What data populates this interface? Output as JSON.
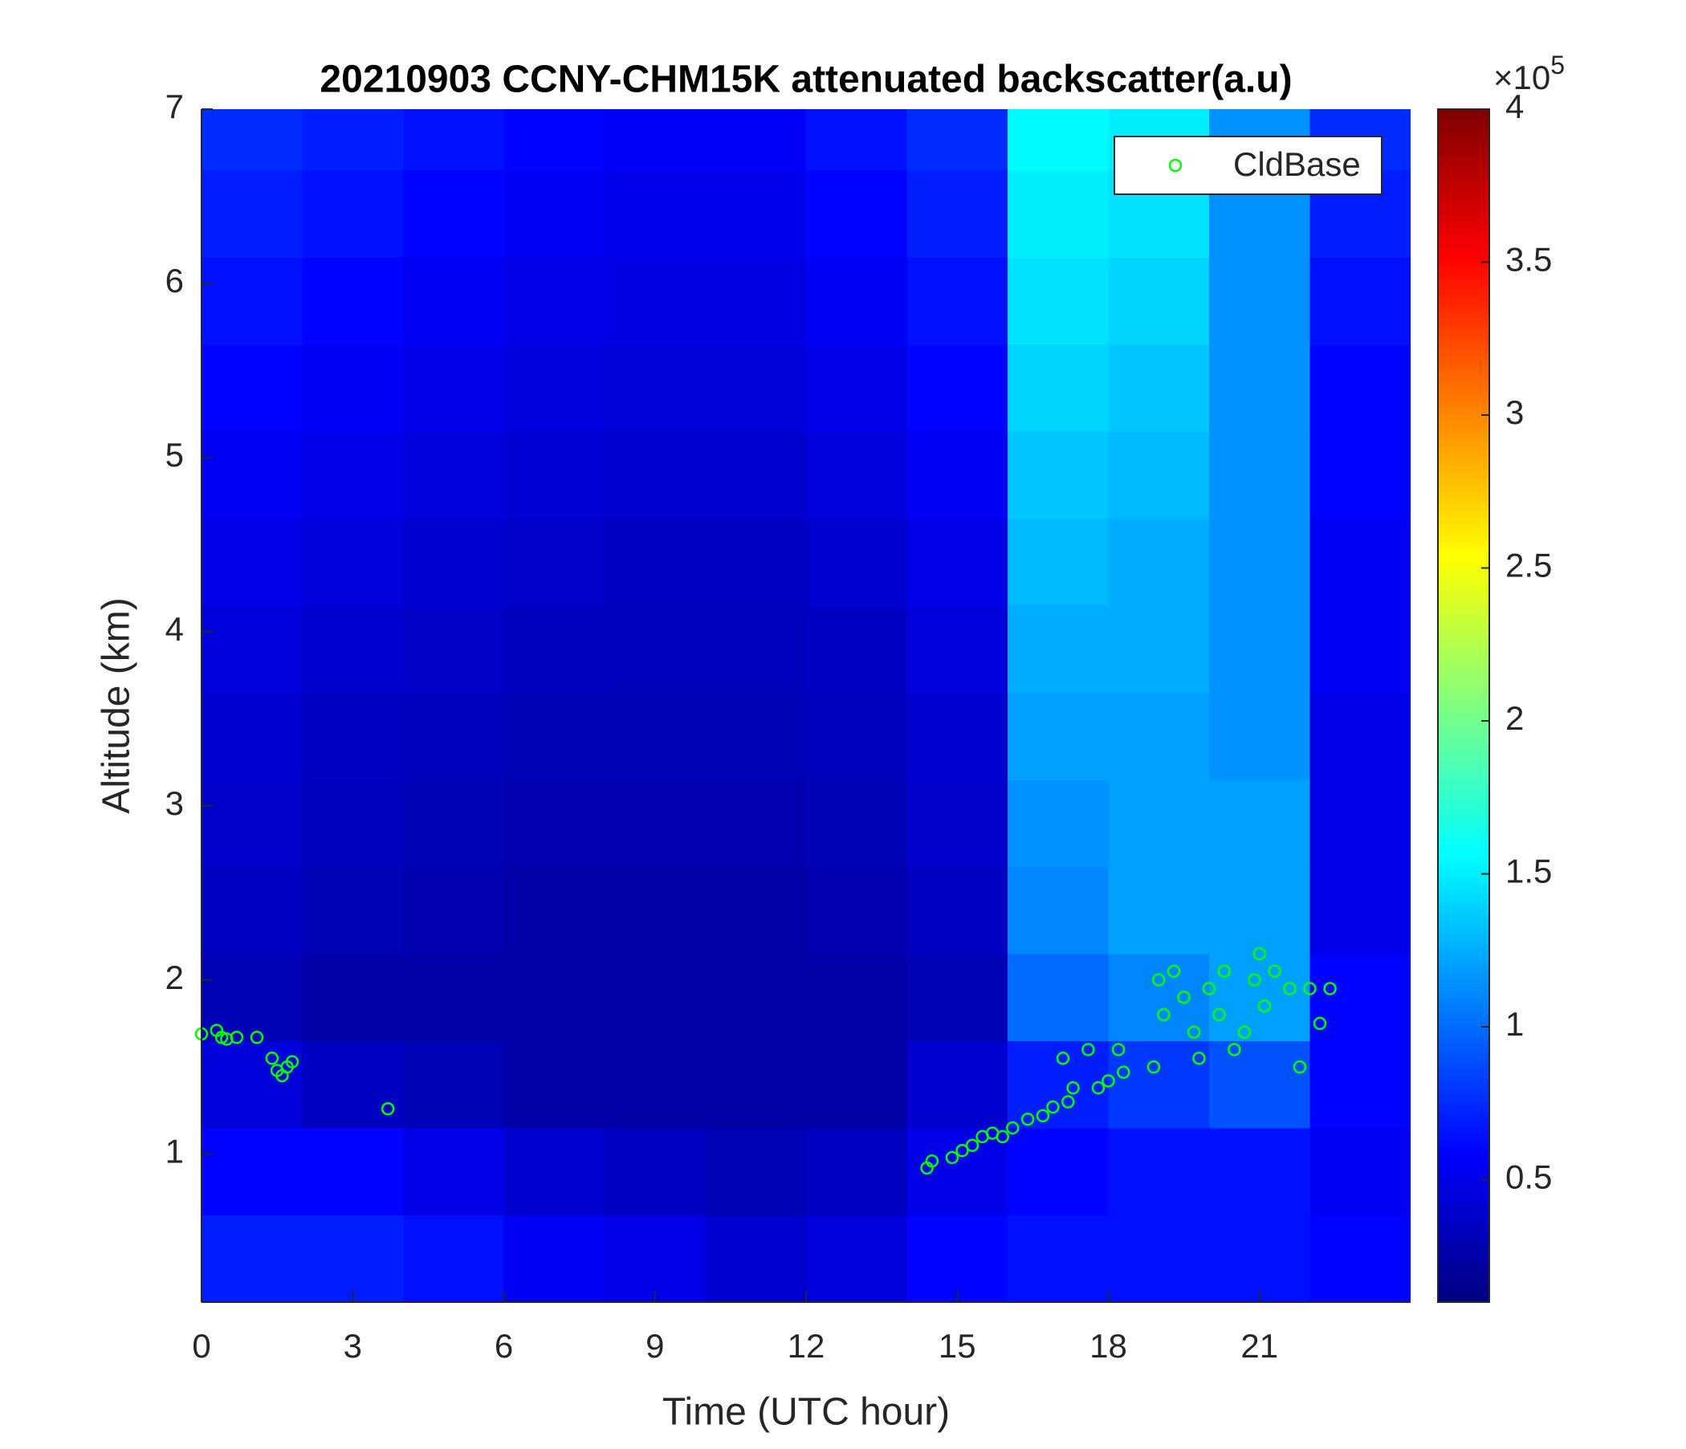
{
  "chart_data": {
    "type": "heatmap",
    "title": "20210903 CCNY-CHM15K attenuated backscatter(a.u)",
    "x_label": "Time (UTC hour)",
    "y_label": "Altitude (km)",
    "xlim": [
      0,
      24
    ],
    "ylim": [
      0.15,
      7
    ],
    "xticks": [
      0,
      3,
      6,
      9,
      12,
      15,
      18,
      21
    ],
    "yticks": [
      1,
      2,
      3,
      4,
      5,
      6,
      7
    ],
    "colormap": "jet",
    "clim": [
      10000,
      400000
    ],
    "colorbar_ticks": [
      {
        "value": 50000,
        "label": "0.5"
      },
      {
        "value": 100000,
        "label": "1"
      },
      {
        "value": 150000,
        "label": "1.5"
      },
      {
        "value": 200000,
        "label": "2"
      },
      {
        "value": 250000,
        "label": "2.5"
      },
      {
        "value": 300000,
        "label": "3"
      },
      {
        "value": 350000,
        "label": "3.5"
      },
      {
        "value": 400000,
        "label": "4"
      }
    ],
    "colorbar_multiplier": {
      "base": "×10",
      "exponent": "5"
    },
    "x": [
      1,
      3,
      5,
      7,
      9,
      11,
      13,
      15,
      17,
      19,
      21,
      23
    ],
    "y": [
      0.4,
      0.9,
      1.4,
      1.9,
      2.4,
      2.9,
      3.4,
      3.9,
      4.4,
      4.9,
      5.4,
      5.9,
      6.4,
      6.9
    ],
    "z": [
      [
        70000,
        70000,
        65000,
        55000,
        50000,
        40000,
        45000,
        60000,
        65000,
        65000,
        65000,
        60000
      ],
      [
        60000,
        60000,
        50000,
        40000,
        35000,
        30000,
        35000,
        50000,
        60000,
        65000,
        65000,
        55000
      ],
      [
        45000,
        35000,
        30000,
        25000,
        25000,
        25000,
        25000,
        40000,
        70000,
        80000,
        90000,
        60000
      ],
      [
        30000,
        25000,
        25000,
        25000,
        25000,
        25000,
        25000,
        30000,
        100000,
        110000,
        120000,
        60000
      ],
      [
        35000,
        30000,
        28000,
        25000,
        25000,
        25000,
        28000,
        35000,
        110000,
        120000,
        120000,
        50000
      ],
      [
        38000,
        33000,
        30000,
        28000,
        28000,
        28000,
        30000,
        38000,
        115000,
        120000,
        120000,
        50000
      ],
      [
        40000,
        36000,
        33000,
        30000,
        30000,
        30000,
        33000,
        40000,
        120000,
        120000,
        115000,
        50000
      ],
      [
        45000,
        40000,
        37000,
        34000,
        33000,
        33000,
        36000,
        45000,
        125000,
        125000,
        115000,
        55000
      ],
      [
        50000,
        45000,
        40000,
        38000,
        36000,
        36000,
        40000,
        50000,
        130000,
        125000,
        115000,
        55000
      ],
      [
        55000,
        50000,
        45000,
        42000,
        40000,
        40000,
        45000,
        55000,
        135000,
        130000,
        115000,
        60000
      ],
      [
        60000,
        55000,
        50000,
        46000,
        44000,
        44000,
        50000,
        60000,
        140000,
        135000,
        115000,
        60000
      ],
      [
        65000,
        60000,
        55000,
        50000,
        48000,
        48000,
        55000,
        65000,
        145000,
        140000,
        115000,
        65000
      ],
      [
        70000,
        65000,
        60000,
        55000,
        52000,
        52000,
        60000,
        70000,
        150000,
        145000,
        115000,
        70000
      ],
      [
        75000,
        70000,
        65000,
        60000,
        56000,
        56000,
        65000,
        75000,
        155000,
        150000,
        115000,
        75000
      ]
    ],
    "legend": "upper right",
    "series": [
      {
        "name": "CldBase",
        "type": "scatter",
        "color": "#00ff00",
        "x": [
          0,
          0.3,
          0.4,
          0.5,
          0.7,
          1.1,
          1.4,
          1.5,
          1.6,
          1.7,
          1.8,
          3.7,
          14.4,
          14.5,
          14.9,
          15.1,
          15.3,
          15.5,
          15.7,
          15.9,
          16.1,
          16.4,
          16.7,
          16.9,
          17.2,
          17.1,
          17.3,
          17.6,
          17.8,
          18.0,
          18.3,
          18.2,
          18.9,
          19.1,
          19.0,
          19.3,
          19.5,
          19.7,
          19.8,
          20.0,
          20.2,
          20.3,
          20.5,
          20.7,
          20.9,
          21.0,
          21.1,
          21.3,
          21.6,
          21.8,
          22.0,
          22.2,
          22.4
        ],
        "y": [
          1.69,
          1.71,
          1.67,
          1.66,
          1.67,
          1.67,
          1.55,
          1.48,
          1.45,
          1.5,
          1.53,
          1.26,
          0.92,
          0.96,
          0.98,
          1.02,
          1.05,
          1.1,
          1.12,
          1.1,
          1.15,
          1.2,
          1.22,
          1.27,
          1.3,
          1.55,
          1.38,
          1.6,
          1.38,
          1.42,
          1.47,
          1.6,
          1.5,
          1.8,
          2.0,
          2.05,
          1.9,
          1.7,
          1.55,
          1.95,
          1.8,
          2.05,
          1.6,
          1.7,
          2.0,
          2.15,
          1.85,
          2.05,
          1.95,
          1.5,
          1.95,
          1.75,
          1.95
        ]
      }
    ]
  }
}
